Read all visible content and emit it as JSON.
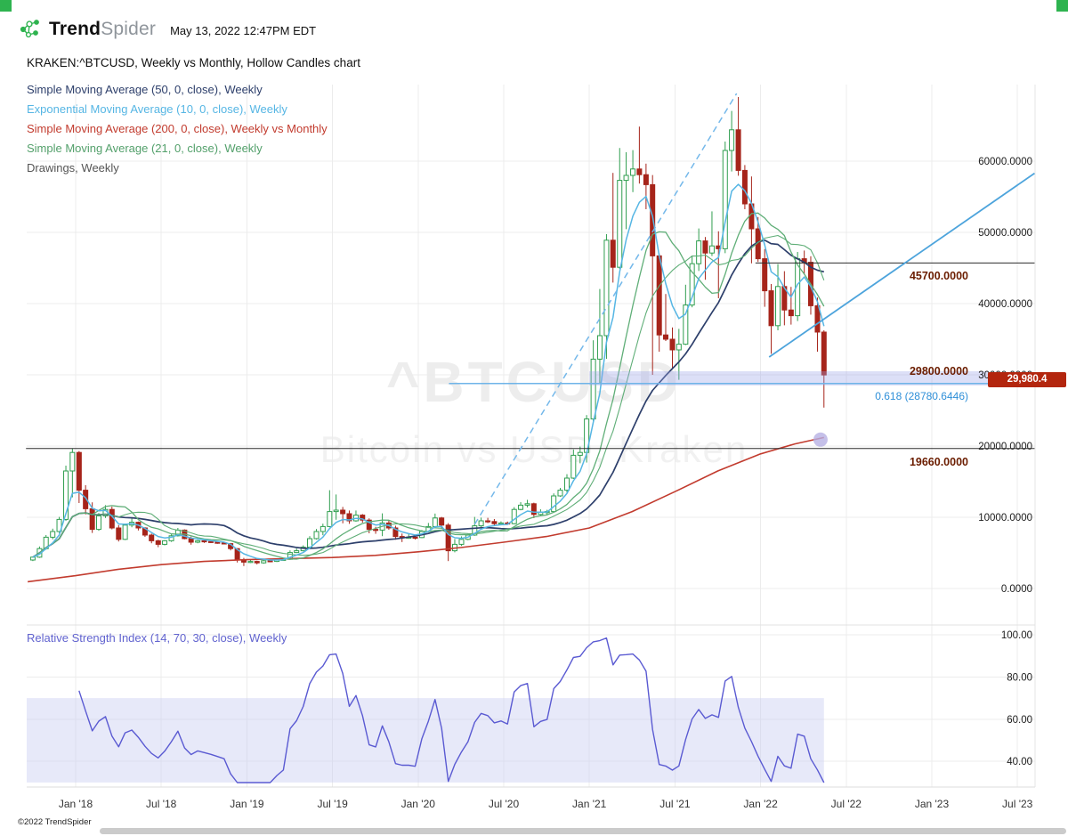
{
  "header": {
    "brand_bold": "Trend",
    "brand_light": "Spider",
    "datetime": "May 13, 2022 12:47PM EDT",
    "brand_color": "#2eb34f"
  },
  "chart_title": "KRAKEN:^BTCUSD, Weekly vs Monthly, Hollow Candles chart",
  "legend": [
    {
      "label": "Simple Moving Average (50, 0, close), Weekly",
      "color": "#2d3f6b"
    },
    {
      "label": "Exponential Moving Average (10, 0, close), Weekly",
      "color": "#56b6e4"
    },
    {
      "label": "Simple Moving Average (200, 0, close), Weekly vs Monthly",
      "color": "#c23b2e"
    },
    {
      "label": "Simple Moving Average (21, 0, close), Weekly",
      "color": "#53a06b"
    },
    {
      "label": "Drawings, Weekly",
      "color": "#555555"
    }
  ],
  "watermark": {
    "line1": "^BTCUSD",
    "line2": "Bitcoin vs USD, Kraken"
  },
  "price_labels": {
    "level_45700": "45700.0000",
    "level_29800": "29800.0000",
    "level_19660": "19660.0000",
    "fib": "0.618 (28780.6446)",
    "last_price": "29,980.4"
  },
  "rsi_title": "Relative Strength Index (14, 70, 30, close), Weekly",
  "footer": {
    "copyright": "©2022 TrendSpider"
  },
  "chart_data": {
    "type": "candlestick",
    "style": "hollow",
    "symbol": "^BTCUSD",
    "exchange": "KRAKEN",
    "timeframe": "Weekly vs Monthly",
    "last_price": 29980.4,
    "colors": {
      "up": "#2f9e4f",
      "down": "#a6241a",
      "sma50": "#2d3f6b",
      "ema10": "#56b6e4",
      "sma200": "#c23b2e",
      "sma21": "#5fae77",
      "rsi": "#5a5ad2",
      "grid": "#ececec",
      "level": "#2b2b2b",
      "trendline": "#74b8ea",
      "zone": "#9aa2e8",
      "badge": "#b3260e"
    },
    "x_axis": {
      "ticks": [
        {
          "t": 2018.0,
          "label": "Jan '18"
        },
        {
          "t": 2018.5,
          "label": "Jul '18"
        },
        {
          "t": 2019.0,
          "label": "Jan '19"
        },
        {
          "t": 2019.5,
          "label": "Jul '19"
        },
        {
          "t": 2020.0,
          "label": "Jan '20"
        },
        {
          "t": 2020.5,
          "label": "Jul '20"
        },
        {
          "t": 2021.0,
          "label": "Jan '21"
        },
        {
          "t": 2021.5,
          "label": "Jul '21"
        },
        {
          "t": 2022.0,
          "label": "Jan '22"
        },
        {
          "t": 2022.5,
          "label": "Jul '22"
        },
        {
          "t": 2023.0,
          "label": "Jan '23"
        },
        {
          "t": 2023.5,
          "label": "Jul '23"
        }
      ],
      "range": [
        2017.71,
        2023.6
      ]
    },
    "price_axis": {
      "ticks": [
        {
          "v": 60000,
          "label": "60000.0000"
        },
        {
          "v": 50000,
          "label": "50000.0000"
        },
        {
          "v": 40000,
          "label": "40000.0000"
        },
        {
          "v": 30000,
          "label": "30000.0000"
        },
        {
          "v": 20000,
          "label": "20000.0000"
        },
        {
          "v": 10000,
          "label": "10000.0000"
        },
        {
          "v": 0,
          "label": "0.0000"
        }
      ],
      "range": [
        0,
        70000
      ]
    },
    "rsi": {
      "period": 14,
      "overbought": 70,
      "oversold": 30,
      "band": [
        30,
        70
      ],
      "ticks": [
        {
          "v": 100,
          "label": "100.00"
        },
        {
          "v": 80,
          "label": "80.00"
        },
        {
          "v": 60,
          "label": "60.00"
        },
        {
          "v": 40,
          "label": "40.00"
        }
      ]
    },
    "candles": [
      [
        2017.75,
        4000,
        4500,
        3850,
        4400
      ],
      [
        2017.789,
        4400,
        5900,
        4300,
        5600
      ],
      [
        2017.827,
        5600,
        7500,
        5450,
        7200
      ],
      [
        2017.866,
        7200,
        8400,
        6900,
        8000
      ],
      [
        2017.904,
        8000,
        10050,
        7800,
        9700
      ],
      [
        2017.943,
        9700,
        17250,
        9500,
        16500
      ],
      [
        2017.981,
        16500,
        19660,
        12800,
        19100
      ],
      [
        2018.02,
        19100,
        19300,
        12000,
        13800
      ],
      [
        2018.058,
        13800,
        14500,
        10400,
        11200
      ],
      [
        2018.097,
        11200,
        12100,
        7800,
        8300
      ],
      [
        2018.135,
        8300,
        10600,
        8100,
        10200
      ],
      [
        2018.174,
        10200,
        11700,
        9900,
        11100
      ],
      [
        2018.212,
        11100,
        11500,
        8300,
        8500
      ],
      [
        2018.251,
        8500,
        8900,
        6600,
        6900
      ],
      [
        2018.289,
        6900,
        9100,
        6800,
        8900
      ],
      [
        2018.328,
        8900,
        9950,
        8600,
        9300
      ],
      [
        2018.366,
        9300,
        9400,
        8150,
        8500
      ],
      [
        2018.405,
        8500,
        8600,
        7250,
        7500
      ],
      [
        2018.443,
        7500,
        7700,
        6350,
        6700
      ],
      [
        2018.482,
        6700,
        6850,
        5800,
        6200
      ],
      [
        2018.52,
        6200,
        6800,
        6050,
        6700
      ],
      [
        2018.559,
        6700,
        7600,
        6550,
        7400
      ],
      [
        2018.597,
        7400,
        8500,
        7300,
        8200
      ],
      [
        2018.636,
        8200,
        8300,
        6900,
        7000
      ],
      [
        2018.674,
        7000,
        7300,
        6150,
        6500
      ],
      [
        2018.713,
        6500,
        6800,
        6350,
        6700
      ],
      [
        2018.751,
        6700,
        6800,
        6400,
        6600
      ],
      [
        2018.79,
        6600,
        6700,
        6380,
        6500
      ],
      [
        2018.828,
        6500,
        6600,
        6280,
        6400
      ],
      [
        2018.867,
        6400,
        6500,
        6200,
        6300
      ],
      [
        2018.905,
        6300,
        6400,
        5350,
        5600
      ],
      [
        2018.944,
        5600,
        5650,
        3650,
        4000
      ],
      [
        2018.982,
        4000,
        4300,
        3150,
        3700
      ],
      [
        2019.021,
        3700,
        4100,
        3580,
        3800
      ],
      [
        2019.059,
        3800,
        3900,
        3380,
        3600
      ],
      [
        2019.098,
        3600,
        4000,
        3480,
        3900
      ],
      [
        2019.136,
        3900,
        4050,
        3680,
        3800
      ],
      [
        2019.175,
        3800,
        4120,
        3720,
        4000
      ],
      [
        2019.213,
        4000,
        4230,
        3900,
        4100
      ],
      [
        2019.252,
        4100,
        5350,
        4020,
        5050
      ],
      [
        2019.29,
        5050,
        5620,
        4980,
        5300
      ],
      [
        2019.329,
        5300,
        6050,
        5220,
        5800
      ],
      [
        2019.367,
        5800,
        7350,
        5700,
        7000
      ],
      [
        2019.406,
        7000,
        8350,
        6880,
        8000
      ],
      [
        2019.444,
        8000,
        9100,
        7480,
        8700
      ],
      [
        2019.483,
        8700,
        13800,
        8600,
        10800
      ],
      [
        2019.521,
        10800,
        13200,
        9650,
        11000
      ],
      [
        2019.56,
        11000,
        11450,
        9150,
        10500
      ],
      [
        2019.598,
        10500,
        10950,
        9080,
        9500
      ],
      [
        2019.637,
        9500,
        10950,
        9380,
        10300
      ],
      [
        2019.675,
        10300,
        10450,
        9250,
        9600
      ],
      [
        2019.714,
        9600,
        9850,
        7750,
        8300
      ],
      [
        2019.752,
        8300,
        8650,
        7680,
        8200
      ],
      [
        2019.791,
        8200,
        10550,
        7350,
        9200
      ],
      [
        2019.829,
        9200,
        9620,
        8250,
        8500
      ],
      [
        2019.868,
        8500,
        8820,
        6850,
        7300
      ],
      [
        2019.906,
        7300,
        7720,
        6520,
        7200
      ],
      [
        2019.945,
        7200,
        7650,
        6980,
        7200
      ],
      [
        2019.983,
        7200,
        7520,
        6880,
        7150
      ],
      [
        2020.022,
        7150,
        8220,
        7080,
        8000
      ],
      [
        2020.06,
        8000,
        9200,
        7920,
        8700
      ],
      [
        2020.099,
        8700,
        10520,
        8580,
        9900
      ],
      [
        2020.137,
        9900,
        10050,
        8480,
        8900
      ],
      [
        2020.176,
        8900,
        9180,
        3850,
        5300
      ],
      [
        2020.214,
        5300,
        6950,
        5080,
        6200
      ],
      [
        2020.253,
        6200,
        7320,
        5980,
        6900
      ],
      [
        2020.291,
        6900,
        7750,
        6780,
        7500
      ],
      [
        2020.33,
        7500,
        10050,
        7400,
        8800
      ],
      [
        2020.368,
        8800,
        9950,
        8620,
        9500
      ],
      [
        2020.407,
        9500,
        9920,
        9180,
        9400
      ],
      [
        2020.445,
        9400,
        9750,
        8880,
        9100
      ],
      [
        2020.484,
        9100,
        9420,
        8980,
        9200
      ],
      [
        2020.522,
        9200,
        9400,
        8920,
        9100
      ],
      [
        2020.561,
        9100,
        11420,
        9020,
        11100
      ],
      [
        2020.599,
        11100,
        12120,
        10980,
        11700
      ],
      [
        2020.638,
        11700,
        12450,
        11380,
        11900
      ],
      [
        2020.676,
        11900,
        12050,
        9880,
        10400
      ],
      [
        2020.715,
        10400,
        11120,
        10180,
        10700
      ],
      [
        2020.753,
        10700,
        11050,
        10280,
        10800
      ],
      [
        2020.792,
        10800,
        13350,
        10680,
        13000
      ],
      [
        2020.83,
        13000,
        14120,
        12880,
        13800
      ],
      [
        2020.869,
        13800,
        16050,
        13480,
        15500
      ],
      [
        2020.907,
        15500,
        19520,
        15380,
        18700
      ],
      [
        2020.946,
        18700,
        19920,
        17580,
        19100
      ],
      [
        2020.984,
        19100,
        24350,
        17680,
        23800
      ],
      [
        2021.023,
        23800,
        34850,
        23480,
        32200
      ],
      [
        2021.061,
        32200,
        42050,
        28850,
        35500
      ],
      [
        2021.1,
        35500,
        49750,
        32250,
        48900
      ],
      [
        2021.138,
        48900,
        58350,
        42950,
        45100
      ],
      [
        2021.177,
        45100,
        61850,
        44880,
        57300
      ],
      [
        2021.215,
        57300,
        61250,
        50450,
        58000
      ],
      [
        2021.254,
        58000,
        61550,
        55650,
        58900
      ],
      [
        2021.292,
        58900,
        64850,
        56850,
        58100
      ],
      [
        2021.331,
        58100,
        59650,
        53250,
        56700
      ],
      [
        2021.369,
        56700,
        58050,
        30000,
        46700
      ],
      [
        2021.408,
        46700,
        47050,
        33250,
        35600
      ],
      [
        2021.446,
        35600,
        41350,
        34750,
        35000
      ],
      [
        2021.485,
        35000,
        36650,
        30950,
        33500
      ],
      [
        2021.523,
        33500,
        36450,
        29300,
        34300
      ],
      [
        2021.562,
        34300,
        42650,
        34180,
        39800
      ],
      [
        2021.6,
        39800,
        46750,
        39480,
        45600
      ],
      [
        2021.639,
        45600,
        50550,
        44580,
        48800
      ],
      [
        2021.677,
        48800,
        49350,
        43350,
        47100
      ],
      [
        2021.716,
        47100,
        52950,
        46680,
        48100
      ],
      [
        2021.754,
        48100,
        50150,
        40750,
        47700
      ],
      [
        2021.793,
        47700,
        62750,
        47080,
        61500
      ],
      [
        2021.831,
        61500,
        67050,
        58550,
        64400
      ],
      [
        2021.87,
        64400,
        69000,
        57950,
        58700
      ],
      [
        2021.908,
        58700,
        59450,
        53250,
        54000
      ],
      [
        2021.947,
        54000,
        57850,
        45650,
        50500
      ],
      [
        2021.985,
        50500,
        52150,
        45850,
        46300
      ],
      [
        2022.024,
        46300,
        47650,
        39550,
        41800
      ],
      [
        2022.062,
        41800,
        42750,
        32950,
        36900
      ],
      [
        2022.101,
        36900,
        45550,
        36250,
        42400
      ],
      [
        2022.139,
        42400,
        44550,
        36950,
        39100
      ],
      [
        2022.178,
        39100,
        42350,
        37050,
        38300
      ],
      [
        2022.216,
        38300,
        47250,
        37550,
        46300
      ],
      [
        2022.255,
        46300,
        47450,
        44150,
        45800
      ],
      [
        2022.293,
        45800,
        46650,
        38450,
        39700
      ],
      [
        2022.332,
        39700,
        40850,
        33250,
        36000
      ],
      [
        2022.37,
        36000,
        36250,
        25400,
        29980.4
      ]
    ],
    "overlays": {
      "horizontal_levels": [
        {
          "price": 45700,
          "t1": 2021.97,
          "t2": 2023.6,
          "label": "45700.0000"
        },
        {
          "price": 19660,
          "t1": 2017.71,
          "t2": 2023.6,
          "label": "19660.0000"
        }
      ],
      "fib_level": {
        "price": 28780.6446,
        "ratio": 0.618,
        "t1": 2020.18,
        "t2": 2023.33,
        "label": "0.618 (28780.6446)"
      },
      "zone": {
        "t1": 2021.0,
        "t2": 2023.33,
        "p1": 28500,
        "p2": 30500
      },
      "trendline_dashed": {
        "t1": 2020.33,
        "p1": 9000,
        "t2": 2021.86,
        "p2": 69500
      },
      "trendline_solid": {
        "t1": 2022.05,
        "p1": 32500,
        "t2": 2023.6,
        "p2": 58300
      },
      "dot": {
        "t": 2022.35,
        "price": 20900
      },
      "ma200_points": [
        [
          2017.72,
          950
        ],
        [
          2018.0,
          1800
        ],
        [
          2018.25,
          2700
        ],
        [
          2018.5,
          3350
        ],
        [
          2018.75,
          3800
        ],
        [
          2019.0,
          4050
        ],
        [
          2019.25,
          4200
        ],
        [
          2019.5,
          4350
        ],
        [
          2019.75,
          4650
        ],
        [
          2020.0,
          5150
        ],
        [
          2020.25,
          5750
        ],
        [
          2020.5,
          6500
        ],
        [
          2020.75,
          7300
        ],
        [
          2021.0,
          8500
        ],
        [
          2021.25,
          10800
        ],
        [
          2021.5,
          13600
        ],
        [
          2021.75,
          16500
        ],
        [
          2022.0,
          18900
        ],
        [
          2022.2,
          20300
        ],
        [
          2022.37,
          21200
        ]
      ]
    }
  }
}
